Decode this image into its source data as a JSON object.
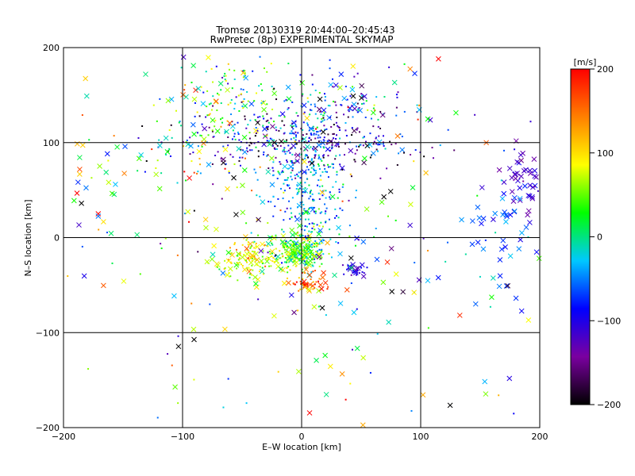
{
  "chart_data": {
    "type": "scatter",
    "title": "Tromsø 20130319 20:44:00–20:45:43",
    "subtitle": "RwPretec (8p) EXPERIMENTAL SKYMAP",
    "xlabel": "E–W location [km]",
    "ylabel": "N–S location [km]",
    "xlim": [
      -200,
      200
    ],
    "ylim": [
      -200,
      200
    ],
    "x_ticks": [
      -200,
      -100,
      0,
      100,
      200
    ],
    "y_ticks": [
      -200,
      -100,
      0,
      100,
      200
    ],
    "x_tick_labels": [
      "−200",
      "−100",
      "0",
      "100",
      "200"
    ],
    "y_tick_labels": [
      "−200",
      "−100",
      "0",
      "100",
      "200"
    ],
    "grid": true,
    "colorbar": {
      "label": "[m/s]",
      "range": [
        -200,
        200
      ],
      "ticks": [
        200,
        100,
        0,
        -100,
        -200
      ],
      "tick_labels": [
        "200",
        "100",
        "0",
        "−100",
        "−200"
      ],
      "colormap": [
        "#000000",
        "#7a00a0",
        "#0000ff",
        "#00c8ff",
        "#00ff00",
        "#ffff00",
        "#ff8000",
        "#ff0000"
      ]
    },
    "marker_types": [
      "small dot",
      "x cross"
    ],
    "clusters": [
      {
        "x": 0,
        "y": -15,
        "spread_x": 10,
        "spread_y": 10,
        "count": 220,
        "v_mean": 40,
        "v_sd": 40,
        "cross_frac": 0.25
      },
      {
        "x": -40,
        "y": -20,
        "spread_x": 18,
        "spread_y": 12,
        "count": 150,
        "v_mean": 80,
        "v_sd": 40,
        "cross_frac": 0.3
      },
      {
        "x": 5,
        "y": 55,
        "spread_x": 15,
        "spread_y": 40,
        "count": 320,
        "v_mean": -40,
        "v_sd": 40,
        "cross_frac": 0.05
      },
      {
        "x": 0,
        "y": 100,
        "spread_x": 50,
        "spread_y": 15,
        "count": 330,
        "v_mean": -120,
        "v_sd": 60,
        "cross_frac": 0.15
      },
      {
        "x": -60,
        "y": 150,
        "spread_x": 25,
        "spread_y": 25,
        "count": 130,
        "v_mean": 20,
        "v_sd": 70,
        "cross_frac": 0.15
      },
      {
        "x": 35,
        "y": 140,
        "spread_x": 25,
        "spread_y": 20,
        "count": 110,
        "v_mean": -50,
        "v_sd": 90,
        "cross_frac": 0.15
      },
      {
        "x": 5,
        "y": -48,
        "spread_x": 8,
        "spread_y": 6,
        "count": 50,
        "v_mean": 160,
        "v_sd": 30,
        "cross_frac": 0.4
      },
      {
        "x": 45,
        "y": -33,
        "spread_x": 5,
        "spread_y": 4,
        "count": 30,
        "v_mean": -110,
        "v_sd": 15,
        "cross_frac": 0.5
      },
      {
        "x": 190,
        "y": 60,
        "spread_x": 10,
        "spread_y": 20,
        "count": 50,
        "v_mean": -120,
        "v_sd": 15,
        "cross_frac": 0.9
      },
      {
        "x": 170,
        "y": 5,
        "spread_x": 20,
        "spread_y": 30,
        "count": 45,
        "v_mean": -55,
        "v_sd": 25,
        "cross_frac": 0.9
      },
      {
        "x": -175,
        "y": 60,
        "spread_x": 20,
        "spread_y": 50,
        "count": 35,
        "v_mean": 10,
        "v_sd": 90,
        "cross_frac": 0.8
      },
      {
        "x": -90,
        "y": 110,
        "spread_x": 25,
        "spread_y": 25,
        "count": 50,
        "v_mean": 40,
        "v_sd": 70,
        "cross_frac": 0.4
      },
      {
        "x": 0,
        "y": 0,
        "spread_x": 110,
        "spread_y": 110,
        "count": 260,
        "v_mean": 0,
        "v_sd": 110,
        "cross_frac": 0.45
      }
    ]
  }
}
